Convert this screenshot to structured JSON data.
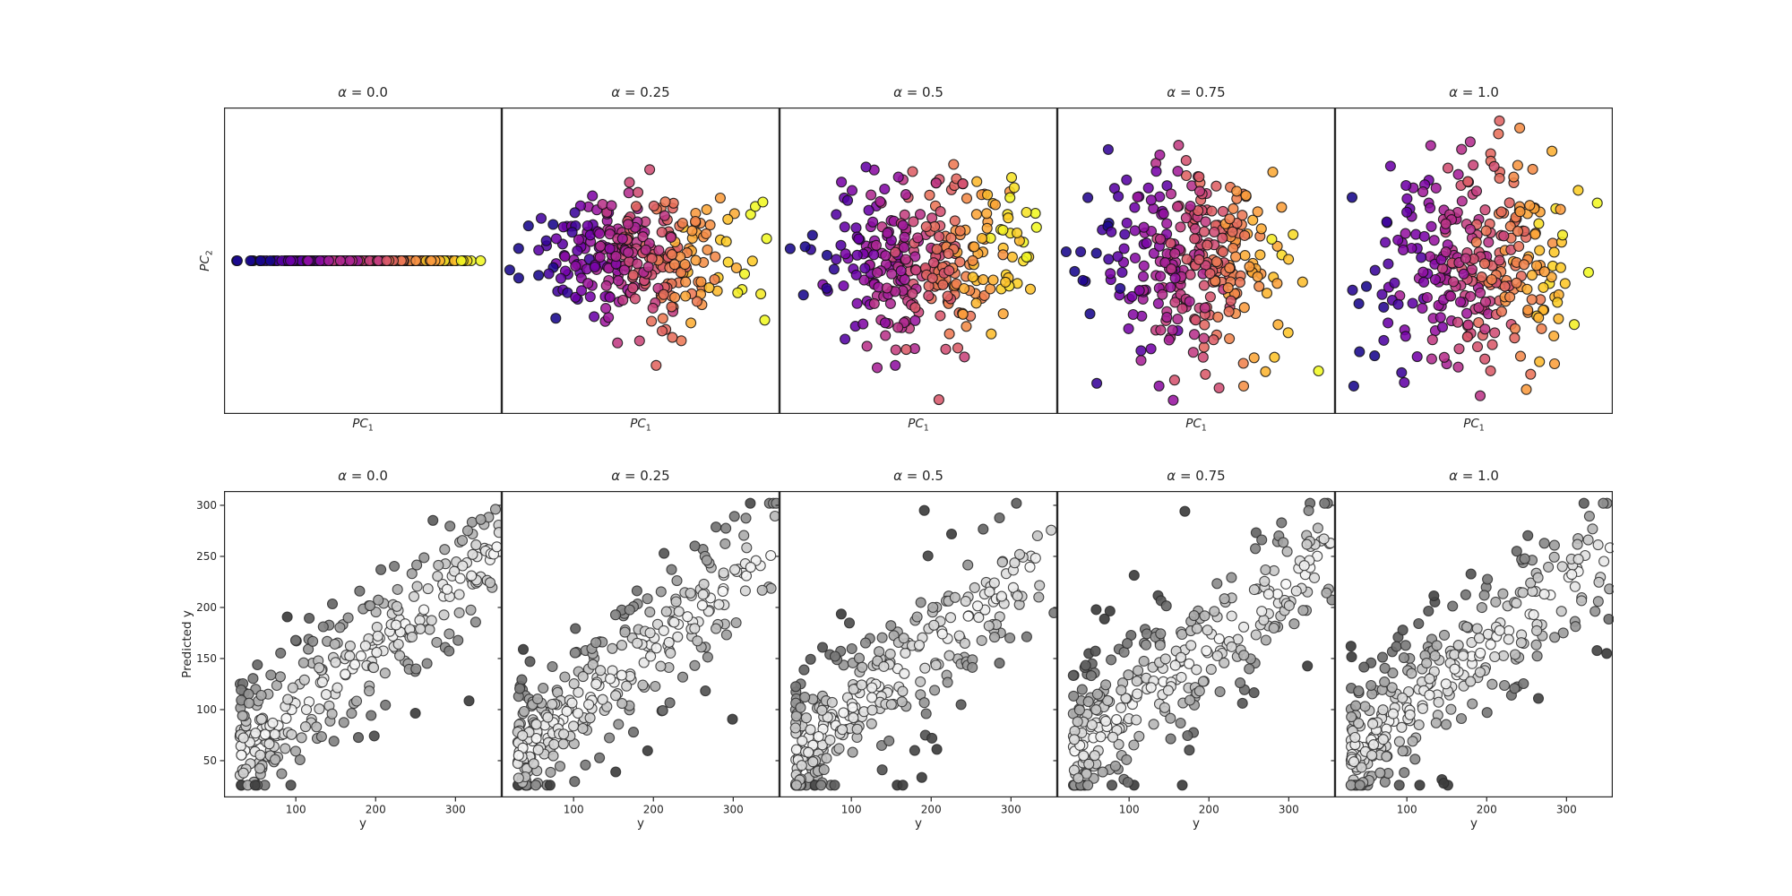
{
  "figure": {
    "background": "#ffffff",
    "text_color": "#262626",
    "spine_color": "#262626",
    "rows": [
      {
        "name": "pca-projection",
        "ylabel_main": "PC",
        "ylabel_sub": "2"
      },
      {
        "name": "prediction-vs-true",
        "ylabel_text": "Predicted y"
      }
    ]
  },
  "colormaps": {
    "plasma_stops": [
      "#0d0887",
      "#46039f",
      "#7201a8",
      "#9c179e",
      "#bd3786",
      "#d8576b",
      "#ed7953",
      "#fb9f3a",
      "#fdc926",
      "#f0f724",
      "#f0f921"
    ],
    "grays": {
      "light": "#f9f9f9",
      "dark": "#3d3d3d"
    }
  },
  "chart_data": [
    {
      "type": "scatter",
      "panel": "pca-alpha-0.0",
      "title_symbol": "α",
      "title_rest": " = 0.0",
      "xlabel_main": "PC",
      "xlabel_sub": "1",
      "ylabel_main": "PC",
      "ylabel_sub": "2",
      "xlim": [
        -3.5,
        3.5
      ],
      "ylim": [
        -3.1,
        3.1
      ],
      "xticks": [],
      "yticks": [],
      "grid": false,
      "n": 300,
      "seed": 11,
      "colormap": "plasma",
      "gen": {
        "kind": "pca",
        "alpha": 0.0,
        "sx": 1.25,
        "clip_x": 3.3,
        "sy": 0.0,
        "mu_y": 0.12,
        "clip_y": 2.9,
        "outlier_frac": 0.05,
        "outlier_extra": [
          0.4,
          1.6
        ],
        "color_base": 0.45,
        "color_slope": 0.155,
        "color_noise": 0.06
      },
      "marker": {
        "radius": 5.5,
        "edge": "#111111",
        "edge_width": 1.1,
        "fill_opacity": 0.88
      }
    },
    {
      "type": "scatter",
      "panel": "pca-alpha-0.25",
      "title_symbol": "α",
      "title_rest": " = 0.25",
      "xlabel_main": "PC",
      "xlabel_sub": "1",
      "xlim": [
        -3.5,
        3.5
      ],
      "ylim": [
        -3.1,
        3.1
      ],
      "xticks": [],
      "yticks": [],
      "grid": false,
      "n": 300,
      "seed": 12,
      "colormap": "plasma",
      "gen": {
        "kind": "pca",
        "alpha": 0.25,
        "sx": 1.25,
        "clip_x": 3.3,
        "sy": 0.62,
        "mu_y": 0.12,
        "clip_y": 2.9,
        "outlier_frac": 0.05,
        "outlier_extra": [
          0.4,
          1.6
        ],
        "color_base": 0.45,
        "color_slope": 0.155,
        "color_noise": 0.06
      },
      "marker": {
        "radius": 5.5,
        "edge": "#111111",
        "edge_width": 1.1,
        "fill_opacity": 0.88
      }
    },
    {
      "type": "scatter",
      "panel": "pca-alpha-0.5",
      "title_symbol": "α",
      "title_rest": " = 0.5",
      "xlabel_main": "PC",
      "xlabel_sub": "1",
      "xlim": [
        -3.5,
        3.5
      ],
      "ylim": [
        -3.1,
        3.1
      ],
      "xticks": [],
      "yticks": [],
      "grid": false,
      "n": 300,
      "seed": 13,
      "colormap": "plasma",
      "gen": {
        "kind": "pca",
        "alpha": 0.5,
        "sx": 1.25,
        "clip_x": 3.3,
        "sy": 0.8,
        "mu_y": 0.1,
        "clip_y": 2.9,
        "outlier_frac": 0.05,
        "outlier_extra": [
          0.4,
          1.6
        ],
        "color_base": 0.45,
        "color_slope": 0.155,
        "color_noise": 0.06
      },
      "marker": {
        "radius": 5.5,
        "edge": "#111111",
        "edge_width": 1.1,
        "fill_opacity": 0.88
      }
    },
    {
      "type": "scatter",
      "panel": "pca-alpha-0.75",
      "title_symbol": "α",
      "title_rest": " = 0.75",
      "xlabel_main": "PC",
      "xlabel_sub": "1",
      "xlim": [
        -3.5,
        3.5
      ],
      "ylim": [
        -3.1,
        3.1
      ],
      "xticks": [],
      "yticks": [],
      "grid": false,
      "n": 300,
      "seed": 14,
      "colormap": "plasma",
      "gen": {
        "kind": "pca",
        "alpha": 0.75,
        "sx": 1.25,
        "clip_x": 3.3,
        "sy": 0.95,
        "mu_y": 0.05,
        "clip_y": 2.9,
        "outlier_frac": 0.05,
        "outlier_extra": [
          0.4,
          1.6
        ],
        "color_base": 0.45,
        "color_slope": 0.155,
        "color_noise": 0.06
      },
      "marker": {
        "radius": 5.5,
        "edge": "#111111",
        "edge_width": 1.1,
        "fill_opacity": 0.88
      }
    },
    {
      "type": "scatter",
      "panel": "pca-alpha-1.0",
      "title_symbol": "α",
      "title_rest": " = 1.0",
      "xlabel_main": "PC",
      "xlabel_sub": "1",
      "xlim": [
        -3.5,
        3.5
      ],
      "ylim": [
        -3.1,
        3.1
      ],
      "xticks": [],
      "yticks": [],
      "grid": false,
      "n": 300,
      "seed": 15,
      "colormap": "plasma",
      "gen": {
        "kind": "pca",
        "alpha": 1.0,
        "sx": 1.25,
        "clip_x": 3.3,
        "sy": 1.1,
        "mu_y": 0.0,
        "clip_y": 2.9,
        "outlier_frac": 0.05,
        "outlier_extra": [
          0.4,
          1.6
        ],
        "color_base": 0.45,
        "color_slope": 0.155,
        "color_noise": 0.06
      },
      "marker": {
        "radius": 5.5,
        "edge": "#111111",
        "edge_width": 1.1,
        "fill_opacity": 0.88
      }
    },
    {
      "type": "scatter",
      "panel": "pred-alpha-0.0",
      "title_symbol": "α",
      "title_rest": " = 0.0",
      "xlabel_main": "y",
      "xlabel_sub": "",
      "ylabel_text": "Predicted y",
      "xlim": [
        10,
        358
      ],
      "ylim": [
        14,
        314
      ],
      "xticks": [
        100,
        200,
        300
      ],
      "yticks": [
        50,
        100,
        150,
        200,
        250,
        300
      ],
      "show_ytick_labels": true,
      "grid": false,
      "n": 300,
      "seed": 61,
      "colormap": "grays",
      "gen": {
        "kind": "regression",
        "x_min": 30,
        "x_span": 325,
        "x_pow": 1.7,
        "intercept": 38,
        "slope": 0.62,
        "sigma": 36,
        "outlier_frac": 0.03,
        "outlier_mult": 2.2,
        "clip_y": [
          26,
          302
        ],
        "color_scale": 95
      },
      "marker": {
        "radius": 5.5,
        "edge": "#2b2b2b",
        "edge_width": 1.1,
        "fill_opacity": 0.92
      }
    },
    {
      "type": "scatter",
      "panel": "pred-alpha-0.25",
      "title_symbol": "α",
      "title_rest": " = 0.25",
      "xlabel_main": "y",
      "xlabel_sub": "",
      "xlim": [
        10,
        358
      ],
      "ylim": [
        14,
        314
      ],
      "xticks": [
        100,
        200,
        300
      ],
      "yticks": [
        50,
        100,
        150,
        200,
        250,
        300
      ],
      "show_ytick_labels": false,
      "grid": false,
      "n": 300,
      "seed": 62,
      "colormap": "grays",
      "gen": {
        "kind": "regression",
        "x_min": 30,
        "x_span": 325,
        "x_pow": 1.7,
        "intercept": 38,
        "slope": 0.62,
        "sigma": 36,
        "outlier_frac": 0.03,
        "outlier_mult": 2.2,
        "clip_y": [
          26,
          302
        ],
        "color_scale": 95
      },
      "marker": {
        "radius": 5.5,
        "edge": "#2b2b2b",
        "edge_width": 1.1,
        "fill_opacity": 0.92
      }
    },
    {
      "type": "scatter",
      "panel": "pred-alpha-0.5",
      "title_symbol": "α",
      "title_rest": " = 0.5",
      "xlabel_main": "y",
      "xlabel_sub": "",
      "xlim": [
        10,
        358
      ],
      "ylim": [
        14,
        314
      ],
      "xticks": [
        100,
        200,
        300
      ],
      "yticks": [
        50,
        100,
        150,
        200,
        250,
        300
      ],
      "show_ytick_labels": false,
      "grid": false,
      "n": 300,
      "seed": 63,
      "colormap": "grays",
      "gen": {
        "kind": "regression",
        "x_min": 30,
        "x_span": 325,
        "x_pow": 1.7,
        "intercept": 38,
        "slope": 0.62,
        "sigma": 37,
        "outlier_frac": 0.03,
        "outlier_mult": 2.2,
        "clip_y": [
          26,
          302
        ],
        "color_scale": 95
      },
      "marker": {
        "radius": 5.5,
        "edge": "#2b2b2b",
        "edge_width": 1.1,
        "fill_opacity": 0.92
      }
    },
    {
      "type": "scatter",
      "panel": "pred-alpha-0.75",
      "title_symbol": "α",
      "title_rest": " = 0.75",
      "xlabel_main": "y",
      "xlabel_sub": "",
      "xlim": [
        10,
        358
      ],
      "ylim": [
        14,
        314
      ],
      "xticks": [
        100,
        200,
        300
      ],
      "yticks": [
        50,
        100,
        150,
        200,
        250,
        300
      ],
      "show_ytick_labels": false,
      "grid": false,
      "n": 300,
      "seed": 64,
      "colormap": "grays",
      "gen": {
        "kind": "regression",
        "x_min": 30,
        "x_span": 325,
        "x_pow": 1.7,
        "intercept": 38,
        "slope": 0.62,
        "sigma": 38,
        "outlier_frac": 0.03,
        "outlier_mult": 2.2,
        "clip_y": [
          26,
          302
        ],
        "color_scale": 95
      },
      "marker": {
        "radius": 5.5,
        "edge": "#2b2b2b",
        "edge_width": 1.1,
        "fill_opacity": 0.92
      }
    },
    {
      "type": "scatter",
      "panel": "pred-alpha-1.0",
      "title_symbol": "α",
      "title_rest": " = 1.0",
      "xlabel_main": "y",
      "xlabel_sub": "",
      "xlim": [
        10,
        358
      ],
      "ylim": [
        14,
        314
      ],
      "xticks": [
        100,
        200,
        300
      ],
      "yticks": [
        50,
        100,
        150,
        200,
        250,
        300
      ],
      "show_ytick_labels": false,
      "grid": false,
      "n": 300,
      "seed": 65,
      "colormap": "grays",
      "gen": {
        "kind": "regression",
        "x_min": 30,
        "x_span": 325,
        "x_pow": 1.7,
        "intercept": 38,
        "slope": 0.62,
        "sigma": 38,
        "outlier_frac": 0.03,
        "outlier_mult": 2.2,
        "clip_y": [
          26,
          302
        ],
        "color_scale": 95
      },
      "marker": {
        "radius": 5.5,
        "edge": "#2b2b2b",
        "edge_width": 1.1,
        "fill_opacity": 0.92
      }
    }
  ]
}
